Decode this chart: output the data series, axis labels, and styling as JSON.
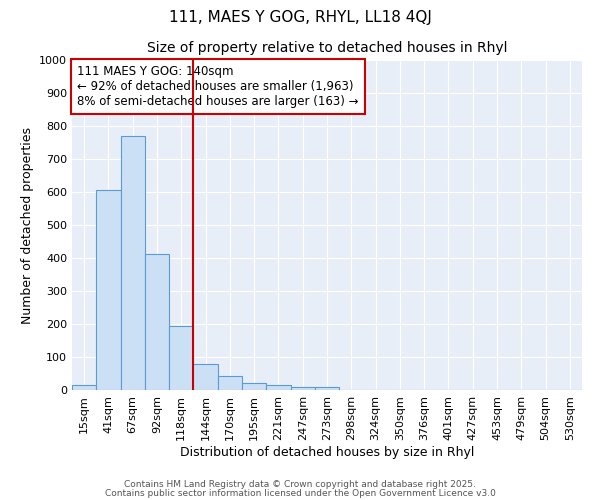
{
  "title": "111, MAES Y GOG, RHYL, LL18 4QJ",
  "subtitle": "Size of property relative to detached houses in Rhyl",
  "xlabel": "Distribution of detached houses by size in Rhyl",
  "ylabel": "Number of detached properties",
  "categories": [
    "15sqm",
    "41sqm",
    "67sqm",
    "92sqm",
    "118sqm",
    "144sqm",
    "170sqm",
    "195sqm",
    "221sqm",
    "247sqm",
    "273sqm",
    "298sqm",
    "324sqm",
    "350sqm",
    "376sqm",
    "401sqm",
    "427sqm",
    "453sqm",
    "479sqm",
    "504sqm",
    "530sqm"
  ],
  "values": [
    15,
    607,
    770,
    413,
    195,
    80,
    42,
    20,
    15,
    10,
    10,
    0,
    0,
    0,
    0,
    0,
    0,
    0,
    0,
    0,
    0
  ],
  "bar_color": "#cce0f5",
  "bar_edge_color": "#5b9bd5",
  "vline_index": 5,
  "vline_color": "#cc0000",
  "annotation_line1": "111 MAES Y GOG: 140sqm",
  "annotation_line2": "← 92% of detached houses are smaller (1,963)",
  "annotation_line3": "8% of semi-detached houses are larger (163) →",
  "annotation_box_color": "#ffffff",
  "annotation_box_edge_color": "#cc0000",
  "ylim": [
    0,
    1000
  ],
  "yticks": [
    0,
    100,
    200,
    300,
    400,
    500,
    600,
    700,
    800,
    900,
    1000
  ],
  "background_color": "#e8eef8",
  "grid_color": "#ffffff",
  "footer1": "Contains HM Land Registry data © Crown copyright and database right 2025.",
  "footer2": "Contains public sector information licensed under the Open Government Licence v3.0",
  "title_fontsize": 11,
  "subtitle_fontsize": 10,
  "label_fontsize": 9,
  "tick_fontsize": 8,
  "annotation_fontsize": 8.5,
  "footer_fontsize": 6.5
}
